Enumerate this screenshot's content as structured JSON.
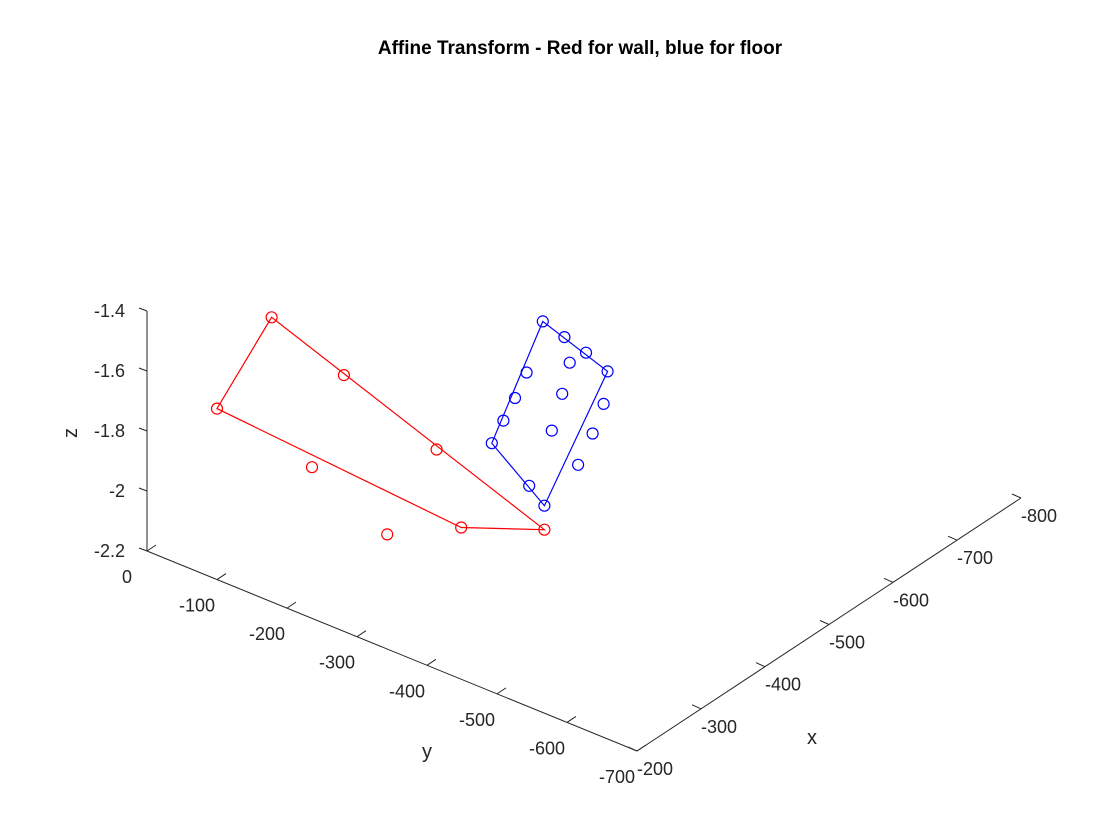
{
  "chart_data": {
    "type": "scatter",
    "title": "Affine Transform - Red for wall, blue for floor",
    "xlabel": "x",
    "ylabel": "y",
    "zlabel": "z",
    "xlim": [
      -800,
      -200
    ],
    "ylim": [
      -700,
      0
    ],
    "zlim": [
      -2.2,
      -1.4
    ],
    "x_ticks": [
      "-200",
      "-300",
      "-400",
      "-500",
      "-600",
      "-700",
      "-800"
    ],
    "y_ticks": [
      "0",
      "-100",
      "-200",
      "-300",
      "-400",
      "-500",
      "-600",
      "-700"
    ],
    "z_ticks": [
      "-1.4",
      "-1.6",
      "-1.8",
      "-2",
      "-2.2"
    ],
    "grid": false,
    "series": [
      {
        "color": "#ff0000",
        "marker": "circle",
        "outline": [
          {
            "x": -200,
            "y": -100,
            "z": -1.63
          },
          {
            "x": -340,
            "y": -50,
            "z": -1.57
          },
          {
            "x": -460,
            "y": -330,
            "z": -2.18
          },
          {
            "x": -330,
            "y": -330,
            "z": -1.99
          }
        ],
        "points": [
          {
            "x": -200,
            "y": -100,
            "z": -1.63
          },
          {
            "x": -340,
            "y": -50,
            "z": -1.57
          },
          {
            "x": -360,
            "y": -135,
            "z": -1.71
          },
          {
            "x": -390,
            "y": -240,
            "z": -1.9
          },
          {
            "x": -460,
            "y": -330,
            "z": -2.18
          },
          {
            "x": -330,
            "y": -330,
            "z": -1.99
          },
          {
            "x": -280,
            "y": -270,
            "z": -2.0
          },
          {
            "x": -250,
            "y": -190,
            "z": -1.81
          }
        ]
      },
      {
        "color": "#0000ff",
        "marker": "circle",
        "outline": [
          {
            "x": -520,
            "y": -200,
            "z": -2.1
          },
          {
            "x": -720,
            "y": -90,
            "z": -2.08
          },
          {
            "x": -690,
            "y": -210,
            "z": -2.09
          },
          {
            "x": -460,
            "y": -330,
            "z": -2.1
          }
        ],
        "points": [
          {
            "x": -520,
            "y": -200,
            "z": -2.1
          },
          {
            "x": -560,
            "y": -180,
            "z": -2.1
          },
          {
            "x": -600,
            "y": -160,
            "z": -2.1
          },
          {
            "x": -640,
            "y": -140,
            "z": -2.09
          },
          {
            "x": -720,
            "y": -90,
            "z": -2.08
          },
          {
            "x": -710,
            "y": -130,
            "z": -2.08
          },
          {
            "x": -700,
            "y": -170,
            "z": -2.08
          },
          {
            "x": -690,
            "y": -210,
            "z": -2.09
          },
          {
            "x": -640,
            "y": -250,
            "z": -2.09
          },
          {
            "x": -590,
            "y": -280,
            "z": -2.09
          },
          {
            "x": -540,
            "y": -305,
            "z": -2.1
          },
          {
            "x": -460,
            "y": -330,
            "z": -2.1
          },
          {
            "x": -480,
            "y": -290,
            "z": -2.1
          },
          {
            "x": -570,
            "y": -240,
            "z": -2.09
          },
          {
            "x": -630,
            "y": -200,
            "z": -2.09
          },
          {
            "x": -680,
            "y": -165,
            "z": -2.09
          }
        ]
      }
    ]
  }
}
